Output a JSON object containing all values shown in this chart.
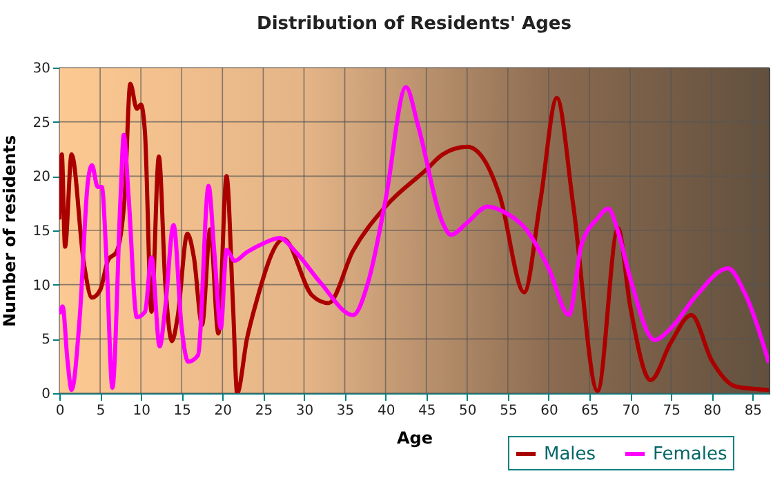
{
  "chart_data": {
    "type": "line",
    "title": "Distribution of Residents' Ages",
    "xlabel": "Age",
    "ylabel": "Number of residents",
    "xlim": [
      0,
      87
    ],
    "xticks": [
      0,
      5,
      10,
      15,
      20,
      25,
      30,
      35,
      40,
      45,
      50,
      55,
      60,
      65,
      70,
      75,
      80,
      85
    ],
    "ylim": [
      0,
      30
    ],
    "yticks": [
      0,
      5,
      10,
      15,
      20,
      25,
      30
    ],
    "grid": true,
    "legend": "bottom right",
    "marker": "none",
    "line_style": "solid",
    "series": [
      {
        "name": "Males",
        "color": "#aa0000",
        "x": [
          0,
          0.3,
          0.7,
          1.5,
          3,
          4,
          5,
          6,
          7,
          8,
          8.7,
          9.5,
          10,
          10.5,
          11.3,
          12.2,
          13,
          13.8,
          14.5,
          15.7,
          16.5,
          17.5,
          18.5,
          19.5,
          20.5,
          21.3,
          21.8,
          23,
          24,
          27.5,
          31,
          33,
          36,
          40,
          45,
          47,
          50,
          52,
          54,
          57,
          59,
          61,
          63,
          66,
          68.5,
          70,
          72.5,
          75,
          77.5,
          80,
          83,
          87
        ],
        "values": [
          16,
          22,
          13.5,
          22,
          12,
          8.8,
          9.5,
          12.3,
          13,
          18,
          28.5,
          26.2,
          26.6,
          24,
          7.5,
          21.8,
          10,
          4.8,
          7,
          14.7,
          12.5,
          6.3,
          15.1,
          5.5,
          20,
          8,
          0,
          5,
          8,
          14.2,
          9,
          8.3,
          13.1,
          17.2,
          20.6,
          22,
          22.7,
          21.6,
          18.2,
          9.3,
          17.8,
          27.2,
          17.4,
          0.2,
          15.2,
          8,
          1.2,
          4.7,
          7.2,
          3,
          0.6,
          0.3
        ]
      },
      {
        "name": "Females",
        "color": "#ff00ff",
        "x": [
          0,
          0.4,
          1,
          1.5,
          2.5,
          3.5,
          4,
          4.7,
          5.2,
          5.8,
          6.5,
          7.5,
          7.9,
          8.5,
          9.5,
          10.5,
          11.3,
          12.3,
          13,
          14,
          15,
          15.8,
          17,
          18.3,
          19,
          19.8,
          20.5,
          21.5,
          23,
          25,
          27,
          29,
          32,
          36,
          38,
          40,
          42.5,
          44,
          47,
          48,
          50,
          52.5,
          55,
          57,
          60,
          62.5,
          64,
          66,
          67.3,
          68.5,
          70,
          73,
          75,
          78,
          82,
          84,
          87
        ],
        "values": [
          7.3,
          8,
          3,
          0.3,
          7,
          19.5,
          21,
          19,
          19,
          12,
          0.5,
          18,
          23.8,
          18,
          7,
          7.5,
          12.5,
          4.3,
          8,
          15.5,
          6,
          2.9,
          3.5,
          19.1,
          13,
          6,
          13.2,
          12.2,
          13,
          13.8,
          14.3,
          13,
          10.2,
          7.2,
          10.6,
          17.8,
          28.2,
          24.6,
          15.7,
          14.6,
          15.7,
          17.2,
          16.5,
          15.3,
          11.5,
          7.2,
          13.6,
          16.1,
          17,
          14.9,
          10.6,
          4.9,
          6,
          8.9,
          11.5,
          9.3,
          2.8
        ]
      }
    ]
  }
}
